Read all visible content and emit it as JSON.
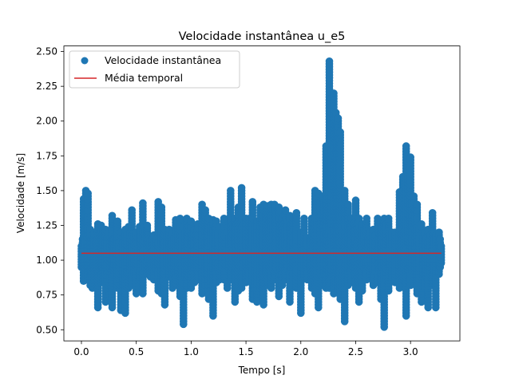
{
  "chart_data": {
    "type": "scatter",
    "title": "Velocidade instantânea u_e5",
    "xlabel": "Tempo [s]",
    "ylabel": "Velocidade [m/s]",
    "xlim": [
      -0.16,
      3.45
    ],
    "ylim": [
      0.42,
      2.54
    ],
    "xticks": [
      "0.0",
      "0.5",
      "1.0",
      "1.5",
      "2.0",
      "2.5",
      "3.0"
    ],
    "yticks": [
      "0.50",
      "0.75",
      "1.00",
      "1.25",
      "1.50",
      "1.75",
      "2.00",
      "2.25",
      "2.50"
    ],
    "grid": false,
    "legend_position": "top-left",
    "series": [
      {
        "name": "Velocidade instantânea",
        "kind": "scatter",
        "color": "#1f77b4",
        "x": [
          0.0,
          0.02,
          0.04,
          0.06,
          0.08,
          0.1,
          0.12,
          0.15,
          0.18,
          0.2,
          0.22,
          0.25,
          0.28,
          0.3,
          0.33,
          0.36,
          0.4,
          0.43,
          0.46,
          0.5,
          0.53,
          0.56,
          0.6,
          0.63,
          0.66,
          0.7,
          0.73,
          0.76,
          0.8,
          0.83,
          0.86,
          0.9,
          0.93,
          0.96,
          1.0,
          1.03,
          1.06,
          1.1,
          1.13,
          1.16,
          1.2,
          1.23,
          1.26,
          1.3,
          1.33,
          1.36,
          1.4,
          1.43,
          1.46,
          1.5,
          1.53,
          1.56,
          1.6,
          1.63,
          1.66,
          1.7,
          1.73,
          1.76,
          1.8,
          1.83,
          1.86,
          1.9,
          1.93,
          1.96,
          2.0,
          2.03,
          2.06,
          2.1,
          2.13,
          2.16,
          2.2,
          2.23,
          2.26,
          2.3,
          2.32,
          2.34,
          2.36,
          2.4,
          2.43,
          2.46,
          2.5,
          2.53,
          2.56,
          2.6,
          2.63,
          2.66,
          2.7,
          2.73,
          2.76,
          2.8,
          2.83,
          2.86,
          2.9,
          2.93,
          2.96,
          3.0,
          3.03,
          3.06,
          3.1,
          3.13,
          3.16,
          3.2,
          3.23,
          3.26,
          3.28
        ],
        "y_high": [
          1.1,
          1.44,
          1.5,
          1.48,
          1.22,
          1.18,
          1.2,
          1.26,
          1.25,
          1.22,
          1.22,
          1.2,
          1.32,
          1.15,
          1.28,
          1.2,
          1.22,
          1.24,
          1.36,
          1.2,
          1.24,
          1.41,
          1.25,
          1.14,
          1.18,
          1.42,
          1.38,
          1.22,
          1.22,
          1.2,
          1.29,
          1.3,
          1.24,
          1.3,
          1.28,
          1.22,
          1.26,
          1.4,
          1.36,
          1.3,
          1.29,
          1.28,
          1.24,
          1.3,
          1.2,
          1.5,
          1.3,
          1.38,
          1.52,
          1.3,
          1.3,
          1.42,
          1.28,
          1.38,
          1.4,
          1.39,
          1.4,
          1.4,
          1.38,
          1.3,
          1.36,
          1.32,
          1.3,
          1.34,
          1.2,
          1.3,
          1.16,
          1.3,
          1.5,
          1.48,
          1.46,
          1.82,
          2.43,
          2.2,
          2.06,
          2.02,
          1.92,
          1.5,
          1.4,
          1.3,
          1.43,
          1.3,
          1.26,
          1.3,
          1.2,
          1.22,
          1.3,
          1.28,
          1.3,
          1.3,
          1.2,
          1.2,
          1.49,
          1.6,
          1.82,
          1.74,
          1.46,
          1.4,
          1.26,
          1.2,
          1.22,
          1.34,
          1.18,
          1.2,
          1.1
        ],
        "y_low": [
          0.95,
          0.85,
          0.9,
          0.88,
          0.82,
          0.8,
          0.86,
          0.66,
          0.84,
          0.84,
          0.7,
          0.78,
          0.66,
          0.9,
          0.8,
          0.64,
          0.62,
          0.8,
          0.82,
          0.76,
          0.86,
          0.76,
          0.9,
          0.88,
          0.86,
          0.78,
          0.76,
          0.68,
          0.88,
          0.8,
          0.82,
          0.74,
          0.54,
          0.8,
          0.8,
          0.84,
          0.86,
          0.76,
          0.8,
          0.72,
          0.6,
          0.84,
          0.86,
          0.86,
          0.8,
          0.86,
          0.7,
          0.78,
          0.8,
          0.84,
          0.86,
          0.72,
          0.7,
          0.8,
          0.68,
          0.82,
          0.8,
          0.86,
          0.74,
          0.82,
          0.86,
          0.7,
          0.84,
          0.8,
          0.62,
          0.88,
          0.86,
          0.8,
          0.76,
          0.66,
          0.82,
          0.8,
          0.8,
          0.76,
          0.82,
          0.8,
          0.72,
          0.56,
          0.82,
          0.84,
          0.8,
          0.7,
          0.78,
          0.86,
          0.9,
          0.82,
          0.84,
          0.72,
          0.52,
          0.78,
          0.86,
          0.84,
          0.8,
          0.86,
          0.6,
          0.82,
          0.84,
          0.76,
          0.7,
          0.8,
          0.66,
          0.82,
          0.66,
          0.9,
          0.98
        ]
      },
      {
        "name": "Média temporal",
        "kind": "line",
        "color": "#d62728",
        "x": [
          0.0,
          3.28
        ],
        "y": [
          1.05,
          1.05
        ]
      }
    ]
  }
}
